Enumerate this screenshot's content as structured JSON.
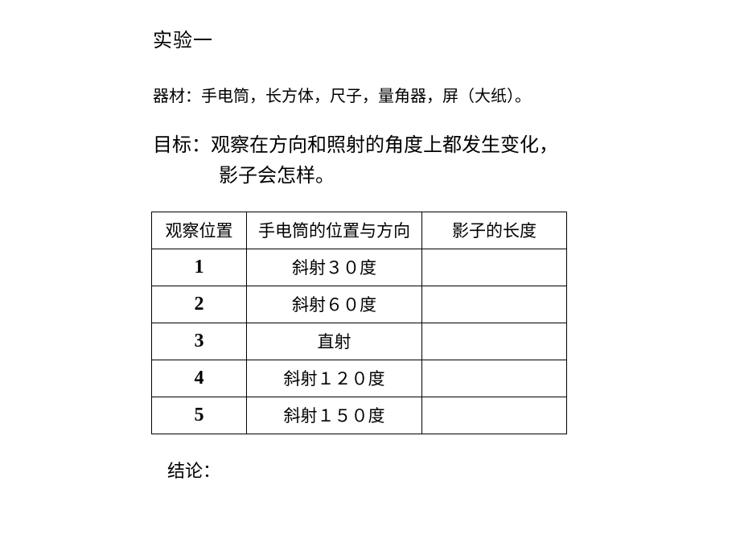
{
  "title": "实验一",
  "materials": {
    "label": "器材：",
    "text": "手电筒，长方体，尺子，量角器，屏（大纸）。"
  },
  "goal": {
    "label": "目标：",
    "line1": "观察在方向和照射的角度上都发生变化，",
    "line2": "影子会怎样。"
  },
  "table": {
    "headers": {
      "col1": "观察位置",
      "col2": "手电筒的位置与方向",
      "col3": "影子的长度"
    },
    "rows": [
      {
        "num": "1",
        "direction": "斜射３０度",
        "shadow": ""
      },
      {
        "num": "2",
        "direction": "斜射６０度",
        "shadow": ""
      },
      {
        "num": "3",
        "direction": "直射",
        "shadow": ""
      },
      {
        "num": "4",
        "direction": "斜射１２０度",
        "shadow": ""
      },
      {
        "num": "5",
        "direction": "斜射１５０度",
        "shadow": ""
      }
    ]
  },
  "conclusion": {
    "label": "结论："
  },
  "style": {
    "text_color": "#000000",
    "background": "#ffffff",
    "border_color": "#000000",
    "title_fontsize": 24,
    "body_fontsize": 20,
    "goal_fontsize": 24,
    "table_fontsize": 21,
    "num_fontsize": 24
  }
}
